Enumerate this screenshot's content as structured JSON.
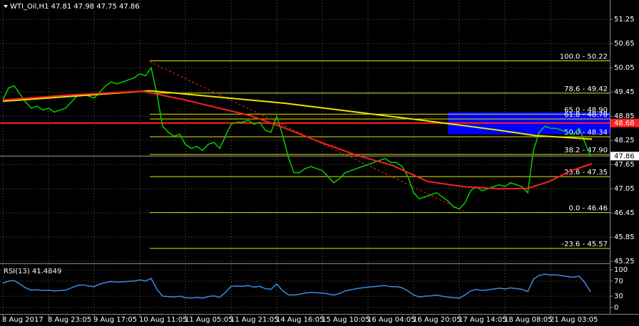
{
  "chart_data": {
    "type": "line",
    "title": "WTI_Oil,H1 47.81 47.98 47.75 47.86",
    "ylim": [
      45.2,
      51.73
    ],
    "yticks": [
      51.25,
      50.65,
      50.05,
      49.45,
      48.85,
      48.25,
      47.65,
      47.05,
      46.45,
      45.85,
      45.25
    ],
    "xlim": [
      -0.5,
      106.375
    ],
    "xticks": [
      {
        "value": 0,
        "label": "8 Aug 2017"
      },
      {
        "value": 8,
        "label": "8 Aug 23:05"
      },
      {
        "value": 16,
        "label": "9 Aug 17:05"
      },
      {
        "value": 24,
        "label": "10 Aug 11:05"
      },
      {
        "value": 32,
        "label": "11 Aug 05:05"
      },
      {
        "value": 40,
        "label": "11 Aug 21:05"
      },
      {
        "value": 48,
        "label": "14 Aug 16:05"
      },
      {
        "value": 56,
        "label": "15 Aug 10:05"
      },
      {
        "value": 64,
        "label": "16 Aug 04:05"
      },
      {
        "value": 72,
        "label": "16 Aug 20:05"
      },
      {
        "value": 80,
        "label": "17 Aug 14:05"
      },
      {
        "value": 88,
        "label": "18 Aug 08:05"
      },
      {
        "value": 96,
        "label": "21 Aug 03:05"
      }
    ],
    "grid": true,
    "series": [
      {
        "color": "#00d000",
        "values": [
          49.25,
          49.55,
          49.6,
          49.4,
          49.2,
          49.05,
          49.1,
          49.0,
          49.05,
          48.95,
          49.0,
          49.05,
          49.2,
          49.35,
          49.4,
          49.35,
          49.3,
          49.45,
          49.6,
          49.7,
          49.65,
          49.7,
          49.75,
          49.8,
          49.9,
          49.85,
          50.05,
          49.4,
          48.6,
          48.45,
          48.35,
          48.4,
          48.15,
          48.05,
          48.1,
          48.0,
          48.15,
          48.2,
          48.05,
          48.35,
          48.65,
          48.7,
          48.7,
          48.75,
          48.65,
          48.7,
          48.5,
          48.45,
          48.85,
          48.4,
          47.85,
          47.45,
          47.45,
          47.55,
          47.6,
          47.55,
          47.5,
          47.35,
          47.2,
          47.3,
          47.45,
          47.5,
          47.55,
          47.6,
          47.65,
          47.7,
          47.75,
          47.8,
          47.7,
          47.7,
          47.6,
          47.35,
          46.95,
          46.8,
          46.85,
          46.9,
          46.95,
          46.85,
          46.75,
          46.6,
          46.55,
          46.7,
          47.0,
          47.1,
          47.0,
          47.05,
          47.1,
          47.15,
          47.1,
          47.2,
          47.15,
          47.1,
          46.95,
          48.0,
          48.45,
          48.6,
          48.55,
          48.55,
          48.5,
          48.45,
          48.4,
          48.55,
          48.2,
          47.86
        ]
      },
      {
        "color": "#e6e600",
        "x": [
          0,
          25.75,
          49.5,
          74.5,
          87,
          93.25,
          103.25
        ],
        "values": [
          49.22,
          49.48,
          49.17,
          48.73,
          48.5,
          48.37,
          48.28
        ]
      },
      {
        "color": "#ff2020",
        "x": [
          0,
          12,
          24.5,
          32,
          37,
          43.25,
          49.5,
          55.75,
          62,
          68.25,
          74.5,
          80.75,
          87,
          92,
          95.75,
          99.5,
          103.25
        ],
        "values": [
          49.25,
          49.38,
          49.47,
          49.25,
          49.08,
          48.87,
          48.55,
          48.2,
          47.88,
          47.63,
          47.23,
          47.1,
          47.05,
          47.06,
          47.23,
          47.49,
          47.67
        ]
      }
    ],
    "fibonacci": {
      "start_x": 25.75,
      "color": "#e6e600",
      "levels": [
        {
          "value": 50.22,
          "label": "100.0 - 50.22"
        },
        {
          "value": 49.42,
          "label": "78.6 - 49.42"
        },
        {
          "value": 48.9,
          "label": "65.0 - 48.90"
        },
        {
          "value": 48.78,
          "label": "61.8 - 48.78"
        },
        {
          "value": 48.34,
          "label": "50.0 - 48.34"
        },
        {
          "value": 47.9,
          "label": "38.2 - 47.90"
        },
        {
          "value": 47.35,
          "label": "23.6 - 47.35"
        },
        {
          "value": 46.46,
          "label": "0.0 - 46.46"
        },
        {
          "value": 45.57,
          "label": "-23.6 - 45.57"
        }
      ]
    },
    "trendline": {
      "color": "#ff2020",
      "x": [
        25.75,
        80.75
      ],
      "values": [
        50.2,
        46.5
      ]
    },
    "zone": {
      "color": "#0000ff",
      "x_start": 78,
      "top": 48.95,
      "bottom": 48.4
    },
    "red_line": {
      "color": "#ff2020",
      "value": 48.68
    },
    "last_price": 47.86,
    "rsi": {
      "label": "RSI(13) 41.4849",
      "color": "#3b8be0",
      "ylim": [
        -15,
        113
      ],
      "yticks": [
        100,
        70,
        30,
        0
      ],
      "values": [
        64,
        70,
        71,
        62,
        52,
        46,
        47,
        45,
        46,
        44,
        45,
        46,
        52,
        58,
        60,
        57,
        55,
        62,
        66,
        69,
        67,
        68,
        69,
        70,
        73,
        70,
        77,
        48,
        30,
        29,
        28,
        30,
        26,
        25,
        27,
        25,
        29,
        31,
        27,
        40,
        56,
        57,
        56,
        58,
        54,
        56,
        50,
        48,
        62,
        45,
        34,
        33,
        35,
        38,
        40,
        39,
        38,
        36,
        33,
        37,
        44,
        47,
        50,
        52,
        54,
        55,
        57,
        58,
        55,
        55,
        52,
        44,
        33,
        28,
        30,
        31,
        33,
        30,
        28,
        26,
        25,
        33,
        44,
        48,
        45,
        47,
        49,
        51,
        49,
        52,
        50,
        48,
        42,
        75,
        85,
        88,
        86,
        86,
        84,
        82,
        80,
        83,
        66,
        41.4849
      ]
    }
  }
}
